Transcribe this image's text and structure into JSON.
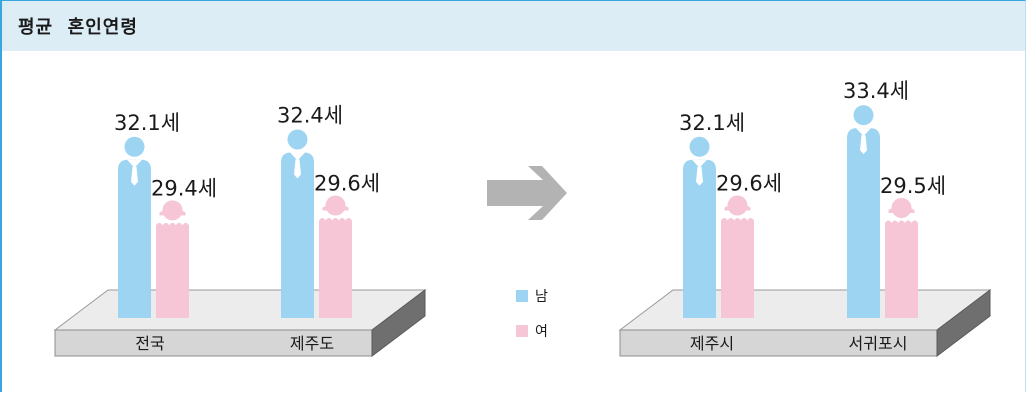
{
  "title": "평균  혼인연령",
  "colors": {
    "male": "#9dd4f2",
    "female": "#f6c5d6",
    "platform": "#d6d6d6",
    "arrow": "#b3b3b3",
    "header": "#dcedf6"
  },
  "chart_data": {
    "type": "bar",
    "value_unit": "세",
    "legend": {
      "placement": "center",
      "items": [
        {
          "label": "남",
          "color": "#9dd4f2"
        },
        {
          "label": "여",
          "color": "#f6c5d6"
        }
      ]
    },
    "panels": [
      {
        "categories": [
          "전국",
          "제주도"
        ],
        "series": [
          {
            "name": "남",
            "values": [
              32.1,
              32.4
            ]
          },
          {
            "name": "여",
            "values": [
              29.4,
              29.6
            ]
          }
        ],
        "value_labels": [
          [
            "32.1세",
            "29.4세"
          ],
          [
            "32.4세",
            "29.6세"
          ]
        ]
      },
      {
        "categories": [
          "제주시",
          "서귀포시"
        ],
        "series": [
          {
            "name": "남",
            "values": [
              32.1,
              33.4
            ]
          },
          {
            "name": "여",
            "values": [
              29.6,
              29.5
            ]
          }
        ],
        "value_labels": [
          [
            "32.1세",
            "29.6세"
          ],
          [
            "33.4세",
            "29.5세"
          ]
        ]
      }
    ]
  }
}
